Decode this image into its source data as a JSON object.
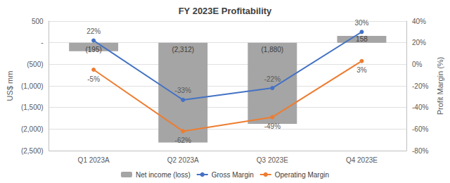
{
  "chart_data": {
    "type": "bar",
    "title": "FY 2023E Profitability",
    "y_label": "US$ mm",
    "y2_label": "Profit Margin (%)",
    "categories": [
      "Q1 2023A",
      "Q2 2023A",
      "Q3 2023E",
      "Q4 2023E"
    ],
    "series": [
      {
        "name": "Net income (loss)",
        "type": "bar",
        "color": "#a5a5a5",
        "values": [
          -195,
          -2312,
          -1880,
          158
        ],
        "value_labels": [
          "(195)",
          "(2,312)",
          "(1,880)",
          "158"
        ]
      },
      {
        "name": "Gross Margin",
        "type": "line",
        "axis": "y2",
        "color": "#4472c4",
        "marker": "circle",
        "values": [
          22,
          -33,
          -22,
          30
        ],
        "value_labels": [
          "22%",
          "-33%",
          "-22%",
          "30%"
        ]
      },
      {
        "name": "Operating Margin",
        "type": "line",
        "axis": "y2",
        "color": "#ed7d31",
        "marker": "circle",
        "values": [
          -5,
          -62,
          -49,
          3
        ],
        "value_labels": [
          "-5%",
          "-62%",
          "-49%",
          "3%"
        ]
      }
    ],
    "ylim": [
      -2500,
      500
    ],
    "yticks": [
      {
        "value": -2500,
        "label": "(2,500)"
      },
      {
        "value": -2000,
        "label": "(2,000)"
      },
      {
        "value": -1500,
        "label": "(1,500)"
      },
      {
        "value": -1000,
        "label": "(1,000)"
      },
      {
        "value": -500,
        "label": "(500)"
      },
      {
        "value": 0,
        "label": "-"
      },
      500
    ],
    "y2lim": [
      -80,
      40
    ],
    "y2ticks": [
      {
        "value": -80,
        "label": "-80%"
      },
      {
        "value": -60,
        "label": "-60%"
      },
      {
        "value": -40,
        "label": "-40%"
      },
      {
        "value": -20,
        "label": "-20%"
      },
      {
        "value": 0,
        "label": "0%"
      },
      {
        "value": 20,
        "label": "20%"
      },
      {
        "value": 40,
        "label": "40%"
      }
    ],
    "grid": true,
    "data_labels": true,
    "legend": "bottom"
  }
}
